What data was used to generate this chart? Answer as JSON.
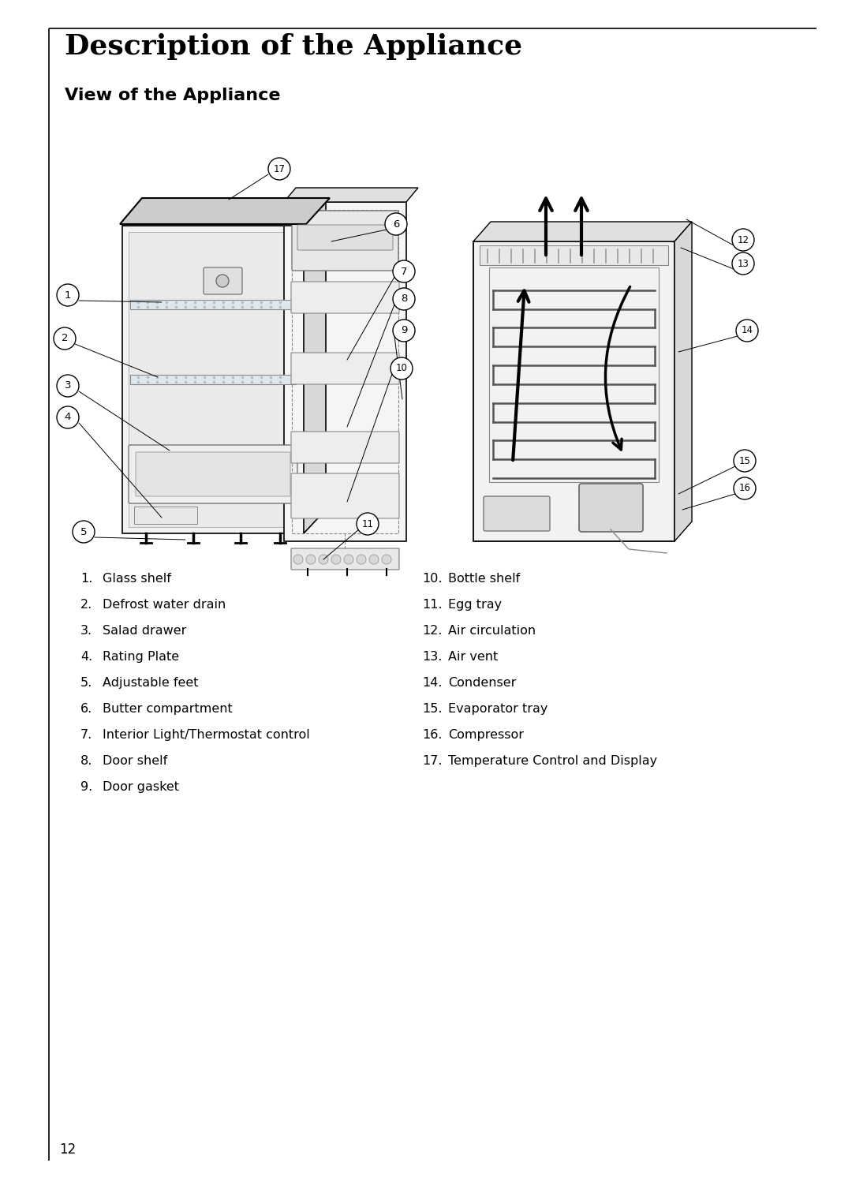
{
  "title": "Description of the Appliance",
  "subtitle": "View of the Appliance",
  "page_number": "12",
  "background_color": "#ffffff",
  "border_color": "#000000",
  "title_fontsize": 26,
  "subtitle_fontsize": 16,
  "list_fontsize": 11.5,
  "items_left": [
    [
      "1.",
      "Glass shelf"
    ],
    [
      "2.",
      "Defrost water drain"
    ],
    [
      "3.",
      "Salad drawer"
    ],
    [
      "4.",
      "Rating Plate"
    ],
    [
      "5.",
      "Adjustable feet"
    ],
    [
      "6.",
      "Butter compartment"
    ],
    [
      "7.",
      "Interior Light/Thermostat control"
    ],
    [
      "8.",
      "Door shelf"
    ],
    [
      "9.",
      "Door gasket"
    ]
  ],
  "items_right": [
    [
      "10.",
      "Bottle shelf"
    ],
    [
      "11.",
      "Egg tray"
    ],
    [
      "12.",
      "Air circulation"
    ],
    [
      "13.",
      "Air vent"
    ],
    [
      "14.",
      "Condenser"
    ],
    [
      "15.",
      "Evaporator tray"
    ],
    [
      "16.",
      "Compressor"
    ],
    [
      "17.",
      "Temperature Control and Display"
    ]
  ]
}
